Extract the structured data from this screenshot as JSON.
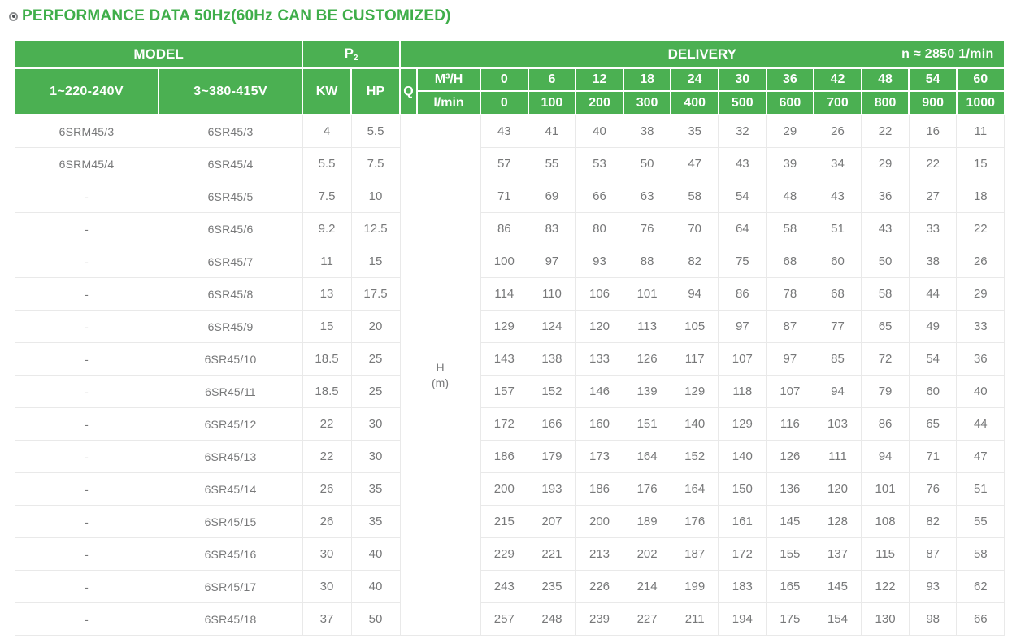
{
  "title": {
    "icon": "bullseye-icon",
    "text": "PERFORMANCE DATA 50Hz(60Hz CAN BE CUSTOMIZED)"
  },
  "colors": {
    "accent_green": "#4bb052",
    "title_green": "#3fae4a",
    "header_text": "#ffffff",
    "body_text": "#777879",
    "grid_border": "#e9e9e9"
  },
  "table": {
    "header": {
      "model_label": "MODEL",
      "p2_base": "P",
      "p2_sub": "2",
      "delivery_label": "DELIVERY",
      "speed_label": "n ≈ 2850 1/min",
      "col_single_phase": "1~220-240V",
      "col_three_phase": "3~380-415V",
      "kw_label": "KW",
      "hp_label": "HP",
      "q_label": "Q",
      "m3h_label": "M³/H",
      "lmin_label": "l/min",
      "m3h_values": [
        "0",
        "6",
        "12",
        "18",
        "24",
        "30",
        "36",
        "42",
        "48",
        "54",
        "60"
      ],
      "lmin_values": [
        "0",
        "100",
        "200",
        "300",
        "400",
        "500",
        "600",
        "700",
        "800",
        "900",
        "1000"
      ]
    },
    "head_unit": {
      "symbol": "H",
      "unit": "(m)"
    },
    "rows": [
      {
        "single": "6SRM45/3",
        "three": "6SR45/3",
        "kw": "4",
        "hp": "5.5",
        "h": [
          "43",
          "41",
          "40",
          "38",
          "35",
          "32",
          "29",
          "26",
          "22",
          "16",
          "11"
        ]
      },
      {
        "single": "6SRM45/4",
        "three": "6SR45/4",
        "kw": "5.5",
        "hp": "7.5",
        "h": [
          "57",
          "55",
          "53",
          "50",
          "47",
          "43",
          "39",
          "34",
          "29",
          "22",
          "15"
        ]
      },
      {
        "single": "-",
        "three": "6SR45/5",
        "kw": "7.5",
        "hp": "10",
        "h": [
          "71",
          "69",
          "66",
          "63",
          "58",
          "54",
          "48",
          "43",
          "36",
          "27",
          "18"
        ]
      },
      {
        "single": "-",
        "three": "6SR45/6",
        "kw": "9.2",
        "hp": "12.5",
        "h": [
          "86",
          "83",
          "80",
          "76",
          "70",
          "64",
          "58",
          "51",
          "43",
          "33",
          "22"
        ]
      },
      {
        "single": "-",
        "three": "6SR45/7",
        "kw": "11",
        "hp": "15",
        "h": [
          "100",
          "97",
          "93",
          "88",
          "82",
          "75",
          "68",
          "60",
          "50",
          "38",
          "26"
        ]
      },
      {
        "single": "-",
        "three": "6SR45/8",
        "kw": "13",
        "hp": "17.5",
        "h": [
          "114",
          "110",
          "106",
          "101",
          "94",
          "86",
          "78",
          "68",
          "58",
          "44",
          "29"
        ]
      },
      {
        "single": "-",
        "three": "6SR45/9",
        "kw": "15",
        "hp": "20",
        "h": [
          "129",
          "124",
          "120",
          "113",
          "105",
          "97",
          "87",
          "77",
          "65",
          "49",
          "33"
        ]
      },
      {
        "single": "-",
        "three": "6SR45/10",
        "kw": "18.5",
        "hp": "25",
        "h": [
          "143",
          "138",
          "133",
          "126",
          "117",
          "107",
          "97",
          "85",
          "72",
          "54",
          "36"
        ]
      },
      {
        "single": "-",
        "three": "6SR45/11",
        "kw": "18.5",
        "hp": "25",
        "h": [
          "157",
          "152",
          "146",
          "139",
          "129",
          "118",
          "107",
          "94",
          "79",
          "60",
          "40"
        ]
      },
      {
        "single": "-",
        "three": "6SR45/12",
        "kw": "22",
        "hp": "30",
        "h": [
          "172",
          "166",
          "160",
          "151",
          "140",
          "129",
          "116",
          "103",
          "86",
          "65",
          "44"
        ]
      },
      {
        "single": "-",
        "three": "6SR45/13",
        "kw": "22",
        "hp": "30",
        "h": [
          "186",
          "179",
          "173",
          "164",
          "152",
          "140",
          "126",
          "111",
          "94",
          "71",
          "47"
        ]
      },
      {
        "single": "-",
        "three": "6SR45/14",
        "kw": "26",
        "hp": "35",
        "h": [
          "200",
          "193",
          "186",
          "176",
          "164",
          "150",
          "136",
          "120",
          "101",
          "76",
          "51"
        ]
      },
      {
        "single": "-",
        "three": "6SR45/15",
        "kw": "26",
        "hp": "35",
        "h": [
          "215",
          "207",
          "200",
          "189",
          "176",
          "161",
          "145",
          "128",
          "108",
          "82",
          "55"
        ]
      },
      {
        "single": "-",
        "three": "6SR45/16",
        "kw": "30",
        "hp": "40",
        "h": [
          "229",
          "221",
          "213",
          "202",
          "187",
          "172",
          "155",
          "137",
          "115",
          "87",
          "58"
        ]
      },
      {
        "single": "-",
        "three": "6SR45/17",
        "kw": "30",
        "hp": "40",
        "h": [
          "243",
          "235",
          "226",
          "214",
          "199",
          "183",
          "165",
          "145",
          "122",
          "93",
          "62"
        ]
      },
      {
        "single": "-",
        "three": "6SR45/18",
        "kw": "37",
        "hp": "50",
        "h": [
          "257",
          "248",
          "239",
          "227",
          "211",
          "194",
          "175",
          "154",
          "130",
          "98",
          "66"
        ]
      }
    ]
  }
}
